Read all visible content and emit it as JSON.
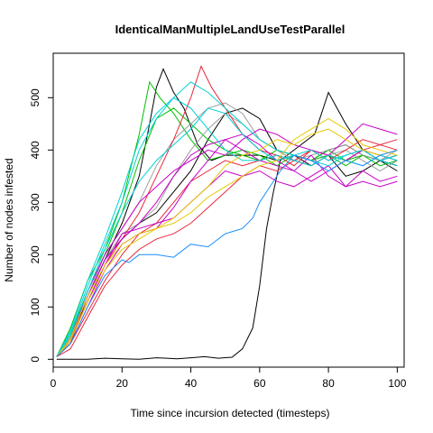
{
  "chart_data": {
    "type": "line",
    "title": "IdenticalManMultipleLandUseTestParallel",
    "xlabel": "Time since incursion detected (timesteps)",
    "ylabel": "Number of nodes infested",
    "xlim": [
      0,
      102
    ],
    "ylim": [
      -15,
      585
    ],
    "xticks": [
      0,
      20,
      40,
      60,
      80,
      100
    ],
    "yticks": [
      0,
      100,
      200,
      300,
      400,
      500
    ],
    "grid": false,
    "legend": "none",
    "colors": {
      "black": "#000000",
      "green": "#00c000",
      "gray": "#9e9e9e",
      "red": "#e8283c",
      "magenta": "#c800c8",
      "cyan": "#00d2d2",
      "yellow": "#e6c800",
      "blue": "#1e90ff"
    },
    "series": [
      {
        "color": "#000000",
        "x": [
          1,
          5,
          10,
          15,
          20,
          25,
          30,
          33,
          36,
          40,
          44,
          48,
          52,
          55,
          58,
          60,
          62,
          64,
          66,
          68,
          72,
          76,
          80,
          85,
          90,
          95,
          100
        ],
        "y": [
          0,
          0,
          0,
          2,
          1,
          0,
          3,
          2,
          1,
          3,
          5,
          2,
          4,
          20,
          60,
          140,
          250,
          320,
          380,
          390,
          410,
          430,
          510,
          450,
          400,
          380,
          370
        ]
      },
      {
        "color": "#000000",
        "x": [
          1,
          5,
          10,
          15,
          20,
          25,
          28,
          30,
          32,
          35,
          38,
          42,
          46,
          50,
          55,
          60,
          65,
          70,
          75,
          80,
          85,
          90,
          95,
          100
        ],
        "y": [
          5,
          40,
          120,
          190,
          260,
          350,
          450,
          520,
          555,
          510,
          480,
          410,
          380,
          390,
          390,
          390,
          380,
          390,
          380,
          400,
          410,
          390,
          380,
          370
        ]
      },
      {
        "color": "#000000",
        "x": [
          1,
          5,
          10,
          15,
          20,
          25,
          30,
          35,
          40,
          45,
          50,
          55,
          60,
          65,
          70,
          75,
          80,
          85,
          90,
          95,
          100
        ],
        "y": [
          5,
          30,
          120,
          190,
          230,
          260,
          280,
          320,
          360,
          420,
          470,
          480,
          460,
          400,
          390,
          370,
          390,
          350,
          360,
          380,
          360
        ]
      },
      {
        "color": "#00c000",
        "x": [
          1,
          5,
          10,
          15,
          20,
          25,
          28,
          31,
          35,
          40,
          45,
          50,
          55,
          60,
          65,
          70,
          75,
          80,
          85,
          90,
          95,
          100
        ],
        "y": [
          5,
          60,
          150,
          210,
          300,
          430,
          530,
          500,
          470,
          420,
          380,
          390,
          400,
          390,
          370,
          390,
          380,
          400,
          380,
          390,
          370,
          380
        ]
      },
      {
        "color": "#00c000",
        "x": [
          1,
          5,
          10,
          15,
          20,
          25,
          30,
          35,
          40,
          45,
          50,
          55,
          60,
          65,
          70,
          75,
          80,
          85,
          90,
          95,
          100
        ],
        "y": [
          5,
          50,
          130,
          200,
          280,
          380,
          460,
          480,
          450,
          420,
          400,
          390,
          380,
          400,
          390,
          380,
          390,
          370,
          390,
          380,
          390
        ]
      },
      {
        "color": "#9e9e9e",
        "x": [
          1,
          5,
          10,
          15,
          20,
          25,
          30,
          35,
          40,
          45,
          50,
          55,
          60,
          65,
          70,
          75,
          80,
          85,
          90,
          95,
          100
        ],
        "y": [
          5,
          45,
          120,
          200,
          250,
          300,
          370,
          420,
          450,
          480,
          490,
          470,
          420,
          400,
          380,
          390,
          400,
          410,
          390,
          380,
          400
        ]
      },
      {
        "color": "#9e9e9e",
        "x": [
          1,
          5,
          10,
          15,
          20,
          25,
          30,
          35,
          40,
          45,
          50,
          55,
          60,
          65,
          70,
          75,
          80,
          85,
          90,
          95,
          100
        ],
        "y": [
          5,
          40,
          120,
          190,
          240,
          260,
          290,
          350,
          400,
          440,
          470,
          450,
          420,
          400,
          380,
          370,
          390,
          400,
          380,
          360,
          380
        ]
      },
      {
        "color": "#e8283c",
        "x": [
          1,
          5,
          10,
          15,
          20,
          25,
          30,
          35,
          40,
          43,
          46,
          50,
          55,
          60,
          65,
          70,
          75,
          80,
          85,
          90,
          95,
          100
        ],
        "y": [
          5,
          40,
          110,
          180,
          230,
          280,
          350,
          420,
          500,
          560,
          520,
          480,
          430,
          400,
          390,
          380,
          400,
          390,
          380,
          400,
          390,
          380
        ]
      },
      {
        "color": "#e8283c",
        "x": [
          1,
          5,
          10,
          15,
          20,
          25,
          30,
          35,
          40,
          45,
          50,
          55,
          60,
          65,
          70,
          75,
          80,
          85,
          90,
          95,
          100
        ],
        "y": [
          5,
          30,
          90,
          150,
          200,
          240,
          260,
          300,
          340,
          360,
          380,
          370,
          380,
          390,
          370,
          400,
          380,
          400,
          420,
          410,
          420
        ]
      },
      {
        "color": "#e8283c",
        "x": [
          1,
          5,
          10,
          15,
          20,
          25,
          30,
          35,
          40,
          45,
          50,
          55,
          60,
          65,
          70,
          75,
          80,
          85,
          90,
          95,
          100
        ],
        "y": [
          5,
          20,
          80,
          140,
          180,
          210,
          230,
          240,
          260,
          290,
          320,
          350,
          370,
          360,
          380,
          370,
          390,
          380,
          400,
          410,
          400
        ]
      },
      {
        "color": "#c800c8",
        "x": [
          1,
          5,
          10,
          15,
          20,
          25,
          30,
          35,
          40,
          45,
          50,
          55,
          60,
          65,
          70,
          75,
          80,
          85,
          90,
          95,
          100
        ],
        "y": [
          5,
          35,
          110,
          180,
          240,
          250,
          260,
          270,
          300,
          330,
          360,
          350,
          360,
          340,
          330,
          350,
          370,
          330,
          360,
          340,
          350
        ]
      },
      {
        "color": "#c800c8",
        "x": [
          1,
          5,
          10,
          15,
          20,
          25,
          30,
          35,
          40,
          45,
          50,
          55,
          60,
          65,
          70,
          75,
          80,
          85,
          90,
          95,
          100
        ],
        "y": [
          5,
          40,
          120,
          190,
          230,
          260,
          300,
          350,
          390,
          410,
          420,
          400,
          380,
          370,
          360,
          390,
          350,
          330,
          340,
          330,
          340
        ]
      },
      {
        "color": "#c800c8",
        "x": [
          1,
          5,
          10,
          15,
          20,
          25,
          30,
          35,
          40,
          45,
          50,
          55,
          60,
          65,
          70,
          75,
          80,
          85,
          90,
          95,
          100
        ],
        "y": [
          5,
          30,
          100,
          170,
          220,
          240,
          250,
          290,
          340,
          380,
          420,
          430,
          410,
          380,
          360,
          340,
          360,
          380,
          400,
          380,
          390
        ]
      },
      {
        "color": "#c800c8",
        "x": [
          1,
          5,
          10,
          15,
          20,
          25,
          30,
          35,
          40,
          45,
          50,
          55,
          60,
          65,
          70,
          75,
          80,
          85,
          90,
          95,
          100
        ],
        "y": [
          5,
          40,
          130,
          200,
          250,
          300,
          330,
          360,
          380,
          400,
          390,
          420,
          440,
          430,
          410,
          400,
          390,
          420,
          450,
          440,
          430
        ]
      },
      {
        "color": "#00d2d2",
        "x": [
          1,
          5,
          10,
          15,
          20,
          25,
          30,
          35,
          40,
          45,
          50,
          55,
          60,
          65,
          70,
          75,
          80,
          85,
          90,
          95,
          100
        ],
        "y": [
          5,
          55,
          150,
          230,
          320,
          420,
          470,
          500,
          480,
          440,
          400,
          380,
          380,
          390,
          380,
          370,
          390,
          380,
          370,
          390,
          380
        ]
      },
      {
        "color": "#00d2d2",
        "x": [
          1,
          5,
          10,
          15,
          20,
          25,
          30,
          35,
          40,
          45,
          50,
          55,
          60,
          65,
          70,
          75,
          80,
          85,
          90,
          95,
          100
        ],
        "y": [
          5,
          50,
          140,
          220,
          300,
          400,
          460,
          500,
          530,
          510,
          480,
          450,
          420,
          400,
          390,
          380,
          370,
          390,
          400,
          380,
          370
        ]
      },
      {
        "color": "#00d2d2",
        "x": [
          1,
          5,
          10,
          15,
          20,
          25,
          30,
          35,
          40,
          45,
          50,
          55,
          60,
          65,
          70,
          75,
          80,
          85,
          90,
          95,
          100
        ],
        "y": [
          5,
          45,
          130,
          210,
          280,
          340,
          380,
          410,
          440,
          480,
          470,
          430,
          400,
          380,
          390,
          400,
          380,
          390,
          400,
          380,
          390
        ]
      },
      {
        "color": "#e6c800",
        "x": [
          1,
          5,
          10,
          15,
          20,
          25,
          30,
          35,
          40,
          45,
          50,
          55,
          60,
          65,
          70,
          75,
          80,
          85,
          90,
          95,
          100
        ],
        "y": [
          5,
          40,
          120,
          180,
          220,
          240,
          250,
          260,
          280,
          310,
          330,
          350,
          370,
          380,
          420,
          440,
          460,
          440,
          410,
          400,
          390
        ]
      },
      {
        "color": "#e6c800",
        "x": [
          1,
          5,
          10,
          15,
          20,
          25,
          30,
          35,
          40,
          45,
          50,
          55,
          60,
          65,
          70,
          75,
          80,
          85,
          90,
          95,
          100
        ],
        "y": [
          5,
          35,
          110,
          170,
          210,
          230,
          250,
          270,
          300,
          330,
          370,
          390,
          400,
          420,
          410,
          430,
          440,
          420,
          400,
          390,
          400
        ]
      },
      {
        "color": "#1e90ff",
        "x": [
          1,
          5,
          10,
          15,
          20,
          22,
          25,
          30,
          35,
          40,
          45,
          50,
          55,
          58,
          60,
          63,
          66,
          70,
          75,
          80,
          85,
          90,
          95,
          100
        ],
        "y": [
          5,
          30,
          100,
          160,
          190,
          185,
          200,
          200,
          195,
          220,
          215,
          240,
          250,
          270,
          300,
          330,
          360,
          390,
          380,
          360,
          380,
          370,
          390,
          400
        ]
      }
    ]
  }
}
